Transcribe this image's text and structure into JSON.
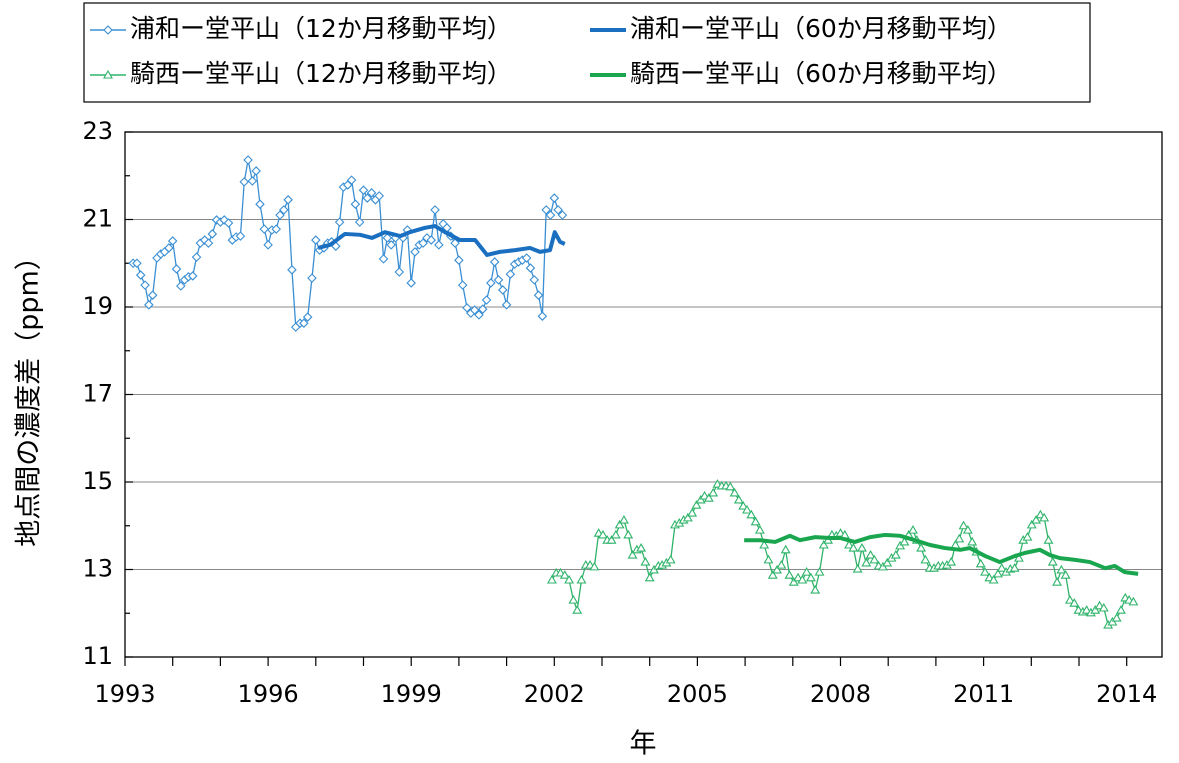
{
  "chart_data": {
    "type": "line",
    "xlabel": "年",
    "ylabel": "地点間の濃度差（ppm）",
    "xlim": [
      1993,
      2014.74
    ],
    "xticks": [
      1993,
      1996,
      1999,
      2002,
      2005,
      2008,
      2011,
      2014
    ],
    "xminorticks": [
      1994,
      1995,
      1997,
      1998,
      2000,
      2001,
      2003,
      2004,
      2006,
      2007,
      2009,
      2010,
      2012,
      2013
    ],
    "ylim": [
      11,
      23
    ],
    "yticks": [
      11,
      13,
      15,
      17,
      19,
      21,
      23
    ],
    "yminorticks": [
      12,
      14,
      16,
      18,
      20,
      22
    ],
    "grid": true,
    "legend": "top",
    "series": [
      {
        "name": "浦和ー堂平山（12か月移動平均）",
        "color": "#3a8fd4",
        "marker": "diamond",
        "x": [
          1993.17,
          1993.25,
          1993.33,
          1993.42,
          1993.5,
          1993.58,
          1993.67,
          1993.75,
          1993.83,
          1993.92,
          1994,
          1994.08,
          1994.17,
          1994.25,
          1994.33,
          1994.42,
          1994.5,
          1994.58,
          1994.67,
          1994.75,
          1994.83,
          1994.92,
          1995,
          1995.08,
          1995.17,
          1995.25,
          1995.33,
          1995.42,
          1995.5,
          1995.58,
          1995.67,
          1995.75,
          1995.83,
          1995.92,
          1996,
          1996.08,
          1996.17,
          1996.25,
          1996.33,
          1996.42,
          1996.5,
          1996.58,
          1996.67,
          1996.75,
          1996.83,
          1996.92,
          1997,
          1997.08,
          1997.17,
          1997.25,
          1997.33,
          1997.42,
          1997.5,
          1997.58,
          1997.67,
          1997.75,
          1997.83,
          1997.92,
          1998,
          1998.08,
          1998.17,
          1998.25,
          1998.33,
          1998.42,
          1998.5,
          1998.58,
          1998.67,
          1998.75,
          1998.83,
          1998.92,
          1999,
          1999.08,
          1999.17,
          1999.25,
          1999.33,
          1999.42,
          1999.5,
          1999.58,
          1999.67,
          1999.75,
          1999.83,
          1999.92,
          2000,
          2000.08,
          2000.17,
          2000.25,
          2000.33,
          2000.42,
          2000.5,
          2000.58,
          2000.67,
          2000.75,
          2000.83,
          2000.92,
          2001,
          2001.08,
          2001.17,
          2001.25,
          2001.33,
          2001.42,
          2001.5,
          2001.58,
          2001.67,
          2001.75,
          2001.83,
          2001.92,
          2002,
          2002.08,
          2002.17
        ],
        "values": [
          20.0,
          20.0,
          19.73,
          19.5,
          19.05,
          19.27,
          20.12,
          20.21,
          20.26,
          20.35,
          20.51,
          19.87,
          19.48,
          19.62,
          19.69,
          19.71,
          20.14,
          20.46,
          20.53,
          20.46,
          20.67,
          20.99,
          20.94,
          20.99,
          20.92,
          20.53,
          20.6,
          20.62,
          21.86,
          22.36,
          21.88,
          22.11,
          21.35,
          20.78,
          20.42,
          20.76,
          20.78,
          21.1,
          21.22,
          21.45,
          19.85,
          18.54,
          18.63,
          18.63,
          18.77,
          19.66,
          20.53,
          20.3,
          20.35,
          20.46,
          20.49,
          20.39,
          20.94,
          21.74,
          21.79,
          21.9,
          21.35,
          20.94,
          21.67,
          21.49,
          21.61,
          21.45,
          21.54,
          20.1,
          20.58,
          20.42,
          20.58,
          19.8,
          20.58,
          20.76,
          19.55,
          20.26,
          20.42,
          20.46,
          20.58,
          20.53,
          21.22,
          20.42,
          20.9,
          20.81,
          20.62,
          20.46,
          20.07,
          19.5,
          18.98,
          18.86,
          18.93,
          18.82,
          18.95,
          19.16,
          19.55,
          20.03,
          19.62,
          19.39,
          19.05,
          19.75,
          19.98,
          20.03,
          20.07,
          20.12,
          19.89,
          19.62,
          19.27,
          18.79,
          21.22,
          21.1,
          21.49,
          21.22,
          21.1
        ]
      },
      {
        "name": "浦和ー堂平山（60か月移動平均）",
        "color": "#1a6fc0",
        "x": [
          1997.05,
          1997.3,
          1997.61,
          1997.93,
          1998.18,
          1998.45,
          1998.77,
          1998.97,
          1999.29,
          1999.5,
          1999.71,
          2000.02,
          2000.34,
          2000.59,
          2000.86,
          2001.18,
          2001.49,
          2001.7,
          2001.91,
          2002.01,
          2002.12,
          2002.22
        ],
        "values": [
          20.35,
          20.42,
          20.67,
          20.65,
          20.58,
          20.71,
          20.62,
          20.71,
          20.81,
          20.85,
          20.71,
          20.53,
          20.53,
          20.19,
          20.26,
          20.3,
          20.35,
          20.26,
          20.3,
          20.71,
          20.49,
          20.44
        ]
      },
      {
        "name": "騎西ー堂平山（12か月移動平均）",
        "color": "#2fb36a",
        "marker": "triangle",
        "x": [
          2001.95,
          2002.04,
          2002.13,
          2002.22,
          2002.31,
          2002.4,
          2002.48,
          2002.57,
          2002.66,
          2002.75,
          2002.84,
          2002.93,
          2003.02,
          2003.11,
          2003.2,
          2003.29,
          2003.37,
          2003.46,
          2003.55,
          2003.64,
          2003.73,
          2003.82,
          2003.91,
          2004,
          2004.09,
          2004.18,
          2004.26,
          2004.35,
          2004.44,
          2004.53,
          2004.62,
          2004.71,
          2004.8,
          2004.89,
          2004.98,
          2005.07,
          2005.15,
          2005.24,
          2005.33,
          2005.42,
          2005.51,
          2005.6,
          2005.69,
          2005.78,
          2005.87,
          2005.96,
          2006.04,
          2006.13,
          2006.22,
          2006.31,
          2006.4,
          2006.49,
          2006.58,
          2006.67,
          2006.76,
          2006.85,
          2006.93,
          2007.02,
          2007.11,
          2007.2,
          2007.29,
          2007.38,
          2007.47,
          2007.56,
          2007.65,
          2007.74,
          2007.82,
          2007.91,
          2008,
          2008.09,
          2008.18,
          2008.27,
          2008.36,
          2008.45,
          2008.54,
          2008.63,
          2008.71,
          2008.8,
          2008.89,
          2008.98,
          2009.07,
          2009.16,
          2009.25,
          2009.34,
          2009.43,
          2009.52,
          2009.6,
          2009.69,
          2009.78,
          2009.87,
          2009.96,
          2010.05,
          2010.14,
          2010.23,
          2010.32,
          2010.41,
          2010.49,
          2010.58,
          2010.67,
          2010.76,
          2010.85,
          2010.94,
          2011.03,
          2011.12,
          2011.21,
          2011.3,
          2011.38,
          2011.47,
          2011.56,
          2011.65,
          2011.74,
          2011.83,
          2011.92,
          2012.01,
          2012.1,
          2012.19,
          2012.27,
          2012.36,
          2012.45,
          2012.54,
          2012.63,
          2012.72,
          2012.81,
          2012.9,
          2012.99,
          2013.08,
          2013.16,
          2013.25,
          2013.34,
          2013.43,
          2013.52,
          2013.61,
          2013.7,
          2013.79,
          2013.88,
          2013.97,
          2014.05,
          2014.14
        ],
        "values": [
          12.76,
          12.92,
          12.92,
          12.87,
          12.76,
          12.3,
          12.07,
          12.76,
          13.1,
          13.1,
          13.06,
          13.83,
          13.79,
          13.67,
          13.67,
          13.79,
          14.02,
          14.13,
          13.79,
          13.33,
          13.45,
          13.49,
          13.17,
          12.81,
          12.99,
          13.08,
          13.1,
          13.15,
          13.22,
          14.02,
          14.06,
          14.13,
          14.18,
          14.29,
          14.47,
          14.59,
          14.68,
          14.63,
          14.75,
          14.95,
          14.91,
          14.91,
          14.89,
          14.75,
          14.59,
          14.45,
          14.36,
          14.25,
          14.09,
          13.9,
          13.56,
          13.22,
          12.87,
          12.99,
          13.1,
          13.45,
          12.87,
          12.71,
          12.81,
          12.76,
          12.94,
          12.81,
          12.53,
          12.94,
          13.56,
          13.67,
          13.79,
          13.77,
          13.83,
          13.79,
          13.56,
          13.49,
          13.01,
          13.49,
          13.15,
          13.33,
          13.22,
          13.08,
          13.06,
          13.15,
          13.26,
          13.33,
          13.54,
          13.63,
          13.79,
          13.9,
          13.67,
          13.49,
          13.22,
          13.03,
          13.03,
          13.08,
          13.08,
          13.1,
          13.17,
          13.56,
          13.7,
          14.0,
          13.9,
          13.63,
          13.4,
          13.13,
          12.94,
          12.81,
          12.76,
          12.9,
          13.03,
          12.94,
          13.01,
          13.03,
          13.26,
          13.67,
          13.74,
          14.02,
          14.13,
          14.25,
          14.18,
          13.67,
          13.17,
          12.71,
          12.99,
          12.87,
          12.3,
          12.23,
          12.07,
          12.03,
          12.07,
          12.01,
          12.07,
          12.17,
          12.12,
          11.73,
          11.8,
          11.89,
          12.07,
          12.35,
          12.3,
          12.26
        ]
      },
      {
        "name": "騎西ー堂平山（60か月移動平均）",
        "color": "#19a64f",
        "x": [
          2005.98,
          2006.31,
          2006.63,
          2006.94,
          2007.15,
          2007.47,
          2007.78,
          2007.99,
          2008.3,
          2008.62,
          2008.93,
          2009.25,
          2009.56,
          2009.88,
          2010.19,
          2010.51,
          2010.71,
          2011.03,
          2011.34,
          2011.66,
          2011.87,
          2012.18,
          2012.39,
          2012.6,
          2012.92,
          2013.23,
          2013.55,
          2013.75,
          2013.96,
          2014.24
        ],
        "values": [
          13.67,
          13.67,
          13.63,
          13.77,
          13.67,
          13.74,
          13.72,
          13.72,
          13.63,
          13.74,
          13.79,
          13.77,
          13.67,
          13.56,
          13.49,
          13.45,
          13.49,
          13.31,
          13.17,
          13.31,
          13.38,
          13.45,
          13.33,
          13.26,
          13.22,
          13.17,
          13.03,
          13.08,
          12.94,
          12.9
        ]
      }
    ]
  }
}
